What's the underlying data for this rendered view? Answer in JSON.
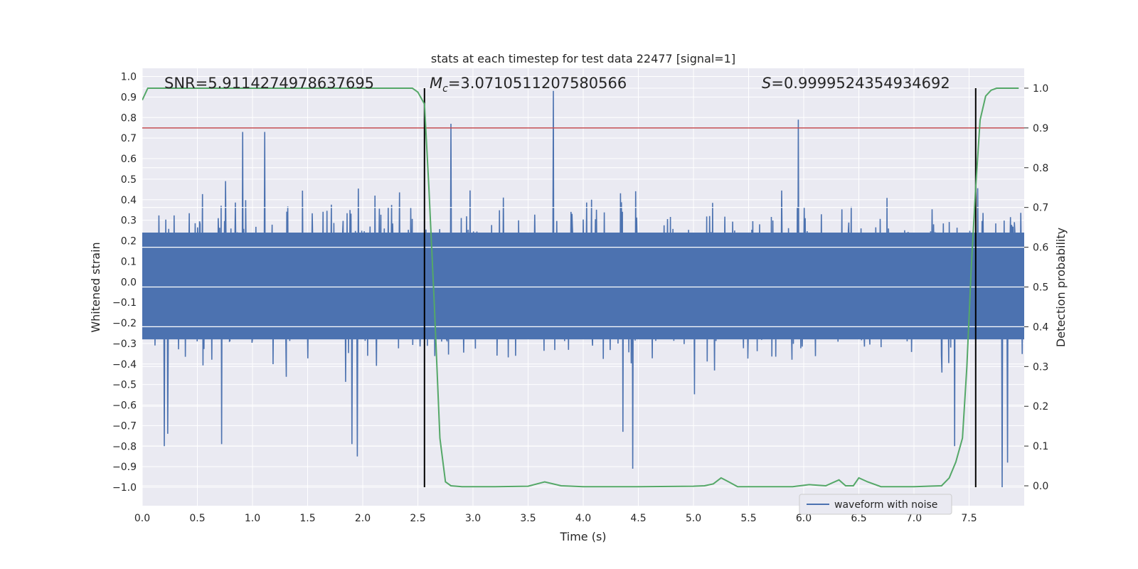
{
  "chart_data": {
    "type": "line",
    "title": "stats at each timestep for test data 22477 [signal=1]",
    "xlabel": "Time (s)",
    "ylabel": "Whitened strain",
    "y2label": "Detection probability",
    "xlim": [
      0.0,
      8.0
    ],
    "ylim": [
      -1.09,
      1.04
    ],
    "y2lim": [
      -0.05,
      1.05
    ],
    "xticks": [
      "0.0",
      "0.5",
      "1.0",
      "1.5",
      "2.0",
      "2.5",
      "3.0",
      "3.5",
      "4.0",
      "4.5",
      "5.0",
      "5.5",
      "6.0",
      "6.5",
      "7.0",
      "7.5"
    ],
    "yticks": [
      "1.0",
      "0.9",
      "0.8",
      "0.7",
      "0.6",
      "0.5",
      "0.4",
      "0.3",
      "0.2",
      "0.1",
      "0.0",
      "-0.1",
      "-0.2",
      "-0.3",
      "-0.4",
      "-0.5",
      "-0.6",
      "-0.7",
      "-0.8",
      "-0.9",
      "-1.0"
    ],
    "y2ticks": [
      "1.0",
      "0.9",
      "0.8",
      "0.7",
      "0.6",
      "0.5",
      "0.4",
      "0.3",
      "0.2",
      "0.1",
      "0.0"
    ],
    "grid": true,
    "legend": {
      "label": "waveform with noise",
      "location": "lower-right"
    },
    "annotations": {
      "snr": "SNR=5.9114274978637695",
      "mc_symbol": "M",
      "mc_sub": "c",
      "mc_value": "=3.0710511207580566",
      "s_symbol": "S",
      "s_value": "=0.9999524354934692"
    },
    "threshold_level": 0.9,
    "vertical_lines_x": [
      2.56,
      7.56
    ],
    "series": [
      {
        "name": "waveform with noise",
        "color": "#4c72b0",
        "description": "whitened strain noise, envelope approx -0.45..0.55 with spikes",
        "amplitude_envelope": 0.42,
        "spikes": [
          {
            "x": 0.2,
            "y": -0.8
          },
          {
            "x": 0.23,
            "y": -0.74
          },
          {
            "x": 0.72,
            "y": -0.79
          },
          {
            "x": 0.91,
            "y": 0.73
          },
          {
            "x": 1.11,
            "y": 0.73
          },
          {
            "x": 1.9,
            "y": -0.79
          },
          {
            "x": 1.95,
            "y": -0.85
          },
          {
            "x": 2.8,
            "y": 0.77
          },
          {
            "x": 3.73,
            "y": 0.93
          },
          {
            "x": 4.45,
            "y": -0.91
          },
          {
            "x": 4.36,
            "y": -0.73
          },
          {
            "x": 5.95,
            "y": 0.79
          },
          {
            "x": 7.37,
            "y": -0.8
          },
          {
            "x": 7.8,
            "y": -1.0
          },
          {
            "x": 7.85,
            "y": -0.88
          }
        ]
      },
      {
        "name": "detection probability",
        "color": "#55a868",
        "axis": "right",
        "x": [
          0.0,
          0.05,
          0.1,
          0.3,
          0.6,
          1.0,
          1.5,
          2.0,
          2.3,
          2.45,
          2.5,
          2.56,
          2.6,
          2.65,
          2.7,
          2.75,
          2.8,
          2.9,
          3.0,
          3.2,
          3.5,
          3.65,
          3.8,
          4.0,
          4.5,
          5.0,
          5.1,
          5.18,
          5.25,
          5.32,
          5.4,
          5.6,
          5.9,
          6.05,
          6.2,
          6.32,
          6.38,
          6.45,
          6.5,
          6.58,
          6.7,
          7.0,
          7.25,
          7.32,
          7.38,
          7.44,
          7.48,
          7.52,
          7.56,
          7.6,
          7.65,
          7.7,
          7.75,
          7.85,
          7.95
        ],
        "values": [
          0.97,
          1.0,
          1.0,
          1.0,
          1.0,
          1.0,
          1.0,
          1.0,
          1.0,
          1.0,
          0.99,
          0.96,
          0.75,
          0.45,
          0.12,
          0.01,
          0.0,
          -0.002,
          -0.002,
          -0.002,
          -0.001,
          0.01,
          0.0,
          -0.002,
          -0.002,
          -0.001,
          0.0,
          0.005,
          0.02,
          0.01,
          -0.002,
          -0.002,
          -0.002,
          0.003,
          0.0,
          0.015,
          0.0,
          0.0,
          0.02,
          0.01,
          -0.002,
          -0.002,
          0.0,
          0.02,
          0.06,
          0.12,
          0.3,
          0.55,
          0.75,
          0.92,
          0.98,
          0.995,
          1.0,
          1.0,
          1.0
        ]
      }
    ]
  }
}
